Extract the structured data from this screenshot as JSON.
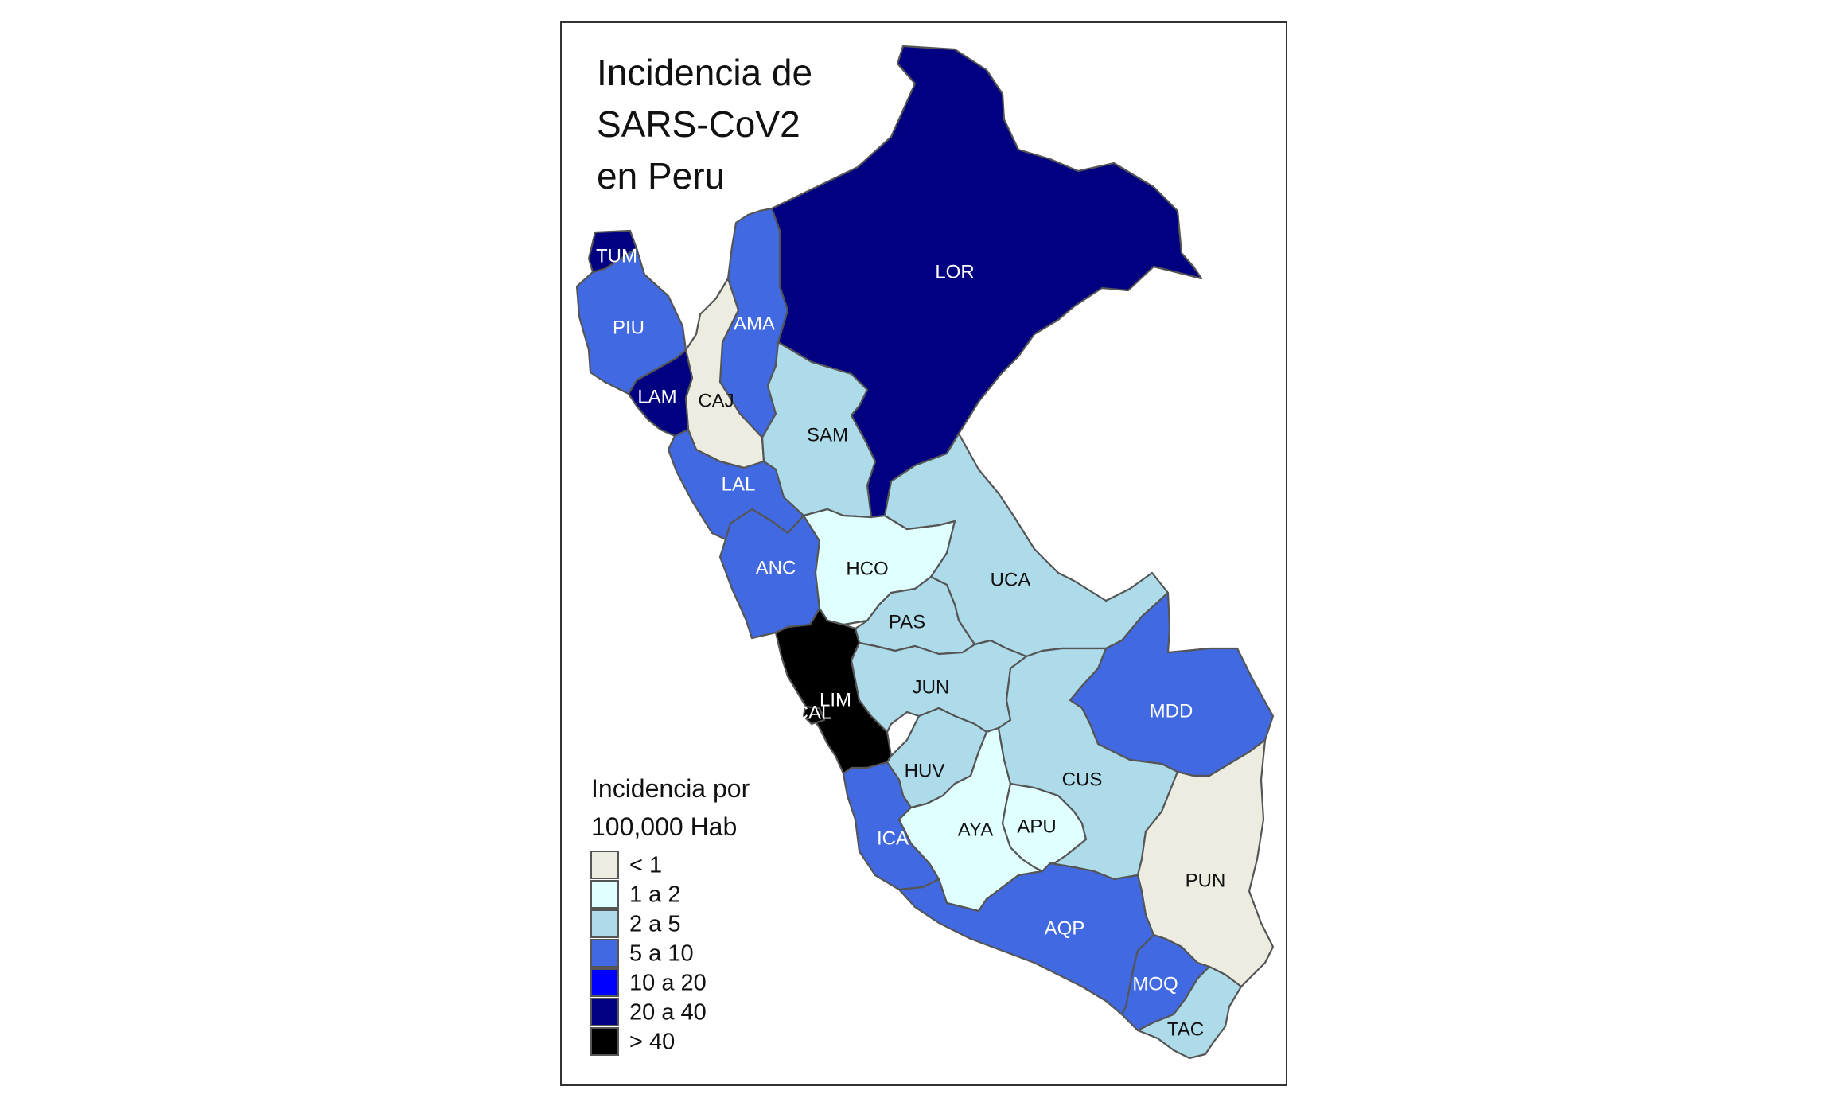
{
  "map": {
    "title_lines": [
      "Incidencia de",
      "SARS-CoV2",
      "en Peru"
    ],
    "legend": {
      "title_lines": [
        "Incidencia por",
        "100,000 Hab"
      ],
      "classes": [
        {
          "label": "< 1",
          "color": "#ECECE0"
        },
        {
          "label": "1 a 2",
          "color": "#E0FFFF"
        },
        {
          "label": "2 a 5",
          "color": "#ADDBEA"
        },
        {
          "label": "5 a 10",
          "color": "#4169E1"
        },
        {
          "label": "10 a 20",
          "color": "#0000FF"
        },
        {
          "label": "20 a 40",
          "color": "#000080"
        },
        {
          "label": "> 40",
          "color": "#000000"
        }
      ]
    },
    "regions": [
      {
        "code": "TUM",
        "class": "20 a 40"
      },
      {
        "code": "PIU",
        "class": "5 a 10"
      },
      {
        "code": "LAM",
        "class": "20 a 40"
      },
      {
        "code": "CAJ",
        "class": "< 1"
      },
      {
        "code": "AMA",
        "class": "5 a 10"
      },
      {
        "code": "LOR",
        "class": "20 a 40"
      },
      {
        "code": "SAM",
        "class": "2 a 5"
      },
      {
        "code": "LAL",
        "class": "5 a 10"
      },
      {
        "code": "ANC",
        "class": "5 a 10"
      },
      {
        "code": "HCO",
        "class": "1 a 2"
      },
      {
        "code": "UCA",
        "class": "2 a 5"
      },
      {
        "code": "PAS",
        "class": "2 a 5"
      },
      {
        "code": "LIM",
        "class": "> 40"
      },
      {
        "code": "CAL",
        "class": "> 40"
      },
      {
        "code": "JUN",
        "class": "2 a 5"
      },
      {
        "code": "MDD",
        "class": "5 a 10"
      },
      {
        "code": "HUV",
        "class": "2 a 5"
      },
      {
        "code": "CUS",
        "class": "2 a 5"
      },
      {
        "code": "ICA",
        "class": "5 a 10"
      },
      {
        "code": "AYA",
        "class": "1 a 2"
      },
      {
        "code": "APU",
        "class": "1 a 2"
      },
      {
        "code": "PUN",
        "class": "< 1"
      },
      {
        "code": "AQP",
        "class": "5 a 10"
      },
      {
        "code": "MOQ",
        "class": "5 a 10"
      },
      {
        "code": "TAC",
        "class": "2 a 5"
      }
    ]
  }
}
